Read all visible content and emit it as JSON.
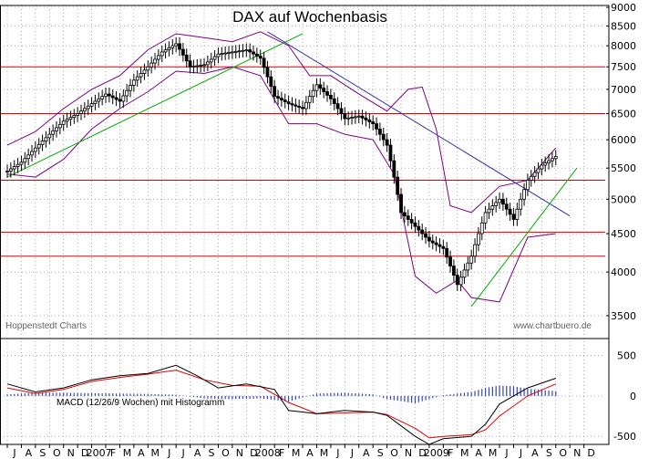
{
  "chart_data": {
    "type": "candlestick",
    "title": "DAX auf Wochenbasis",
    "source_left": "Hoppenstedt Charts",
    "source_right": "www.chartbuero.de",
    "price_axis": {
      "scale": "log",
      "ticks": [
        3500,
        4000,
        4500,
        5000,
        5500,
        6000,
        6500,
        7000,
        7500,
        8000,
        8500,
        9000
      ],
      "range": [
        3300,
        9000
      ]
    },
    "time_axis": {
      "ticks": [
        "J",
        "A",
        "S",
        "O",
        "N",
        "D",
        "2007",
        "F",
        "M",
        "A",
        "M",
        "J",
        "J",
        "A",
        "S",
        "O",
        "N",
        "D",
        "2008",
        "F",
        "M",
        "A",
        "M",
        "J",
        "J",
        "A",
        "S",
        "O",
        "N",
        "D",
        "2009",
        "F",
        "M",
        "A",
        "M",
        "J",
        "J",
        "A",
        "S",
        "O",
        "N",
        "D"
      ],
      "start_index": 0,
      "end_index": 41
    },
    "horizontal_levels": [
      7500,
      6500,
      5300,
      4520,
      4200
    ],
    "price": [
      {
        "t": 0.0,
        "v": 5450
      },
      {
        "t": 1.0,
        "v": 5600
      },
      {
        "t": 2.0,
        "v": 5850
      },
      {
        "t": 3.0,
        "v": 6100
      },
      {
        "t": 4.0,
        "v": 6350
      },
      {
        "t": 5.0,
        "v": 6500
      },
      {
        "t": 6.0,
        "v": 6700
      },
      {
        "t": 7.0,
        "v": 6900
      },
      {
        "t": 8.0,
        "v": 6750
      },
      {
        "t": 9.0,
        "v": 7200
      },
      {
        "t": 10.0,
        "v": 7500
      },
      {
        "t": 11.0,
        "v": 7850
      },
      {
        "t": 12.0,
        "v": 8050
      },
      {
        "t": 13.0,
        "v": 7500
      },
      {
        "t": 14.0,
        "v": 7550
      },
      {
        "t": 15.0,
        "v": 7800
      },
      {
        "t": 16.0,
        "v": 7850
      },
      {
        "t": 17.0,
        "v": 7900
      },
      {
        "t": 18.0,
        "v": 7700
      },
      {
        "t": 19.0,
        "v": 6850
      },
      {
        "t": 20.0,
        "v": 6700
      },
      {
        "t": 21.0,
        "v": 6600
      },
      {
        "t": 22.0,
        "v": 7100
      },
      {
        "t": 23.0,
        "v": 6800
      },
      {
        "t": 24.0,
        "v": 6400
      },
      {
        "t": 25.0,
        "v": 6450
      },
      {
        "t": 26.0,
        "v": 6300
      },
      {
        "t": 27.0,
        "v": 5900
      },
      {
        "t": 28.0,
        "v": 4800
      },
      {
        "t": 29.0,
        "v": 4600
      },
      {
        "t": 30.0,
        "v": 4400
      },
      {
        "t": 31.0,
        "v": 4300
      },
      {
        "t": 32.0,
        "v": 3850
      },
      {
        "t": 33.0,
        "v": 4200
      },
      {
        "t": 34.0,
        "v": 4800
      },
      {
        "t": 35.0,
        "v": 5000
      },
      {
        "t": 36.0,
        "v": 4700
      },
      {
        "t": 37.0,
        "v": 5300
      },
      {
        "t": 38.0,
        "v": 5550
      },
      {
        "t": 39.0,
        "v": 5700
      }
    ],
    "upper_band": [
      {
        "t": 0.0,
        "v": 5900
      },
      {
        "t": 2.0,
        "v": 6150
      },
      {
        "t": 4.0,
        "v": 6600
      },
      {
        "t": 6.0,
        "v": 7000
      },
      {
        "t": 8.0,
        "v": 7300
      },
      {
        "t": 10.0,
        "v": 7900
      },
      {
        "t": 12.0,
        "v": 8300
      },
      {
        "t": 14.0,
        "v": 8200
      },
      {
        "t": 16.0,
        "v": 8100
      },
      {
        "t": 18.0,
        "v": 8350
      },
      {
        "t": 20.0,
        "v": 8000
      },
      {
        "t": 21.5,
        "v": 7300
      },
      {
        "t": 23.0,
        "v": 7300
      },
      {
        "t": 25.0,
        "v": 6900
      },
      {
        "t": 27.0,
        "v": 6550
      },
      {
        "t": 28.5,
        "v": 7000
      },
      {
        "t": 29.5,
        "v": 7050
      },
      {
        "t": 30.5,
        "v": 6200
      },
      {
        "t": 31.5,
        "v": 4900
      },
      {
        "t": 33.0,
        "v": 4800
      },
      {
        "t": 35.0,
        "v": 5200
      },
      {
        "t": 37.0,
        "v": 5300
      },
      {
        "t": 39.0,
        "v": 5850
      }
    ],
    "lower_band": [
      {
        "t": 0.0,
        "v": 5400
      },
      {
        "t": 2.0,
        "v": 5350
      },
      {
        "t": 4.0,
        "v": 5650
      },
      {
        "t": 6.0,
        "v": 6200
      },
      {
        "t": 8.0,
        "v": 6600
      },
      {
        "t": 10.0,
        "v": 6950
      },
      {
        "t": 12.0,
        "v": 7400
      },
      {
        "t": 14.0,
        "v": 7350
      },
      {
        "t": 16.0,
        "v": 7500
      },
      {
        "t": 18.0,
        "v": 7300
      },
      {
        "t": 20.0,
        "v": 6300
      },
      {
        "t": 22.0,
        "v": 6300
      },
      {
        "t": 24.0,
        "v": 6100
      },
      {
        "t": 26.0,
        "v": 6000
      },
      {
        "t": 27.5,
        "v": 5400
      },
      {
        "t": 29.0,
        "v": 3950
      },
      {
        "t": 30.5,
        "v": 3750
      },
      {
        "t": 32.0,
        "v": 3900
      },
      {
        "t": 33.0,
        "v": 3700
      },
      {
        "t": 35.0,
        "v": 3650
      },
      {
        "t": 37.0,
        "v": 4450
      },
      {
        "t": 39.0,
        "v": 4500
      }
    ],
    "trend_lines": [
      {
        "color": "#00aa00",
        "from": {
          "t": 0.0,
          "v": 5350
        },
        "to": {
          "t": 21.0,
          "v": 8300
        }
      },
      {
        "color": "#3333aa",
        "from": {
          "t": 18.5,
          "v": 8350
        },
        "to": {
          "t": 40.0,
          "v": 4750
        }
      },
      {
        "color": "#00aa00",
        "from": {
          "t": 33.0,
          "v": 3600
        },
        "to": {
          "t": 40.5,
          "v": 5500
        }
      }
    ],
    "macd": {
      "label": "MACD (12/26/9 Wochen) mit Histogramm",
      "ticks": [
        500,
        0,
        -500
      ],
      "range": [
        -600,
        700
      ],
      "macd_line": [
        {
          "t": 0.0,
          "v": 150
        },
        {
          "t": 2.0,
          "v": 50
        },
        {
          "t": 4.0,
          "v": 100
        },
        {
          "t": 6.0,
          "v": 200
        },
        {
          "t": 8.0,
          "v": 250
        },
        {
          "t": 10.0,
          "v": 280
        },
        {
          "t": 12.0,
          "v": 380
        },
        {
          "t": 13.5,
          "v": 250
        },
        {
          "t": 15.0,
          "v": 100
        },
        {
          "t": 17.0,
          "v": 150
        },
        {
          "t": 19.0,
          "v": 80
        },
        {
          "t": 20.0,
          "v": -180
        },
        {
          "t": 22.0,
          "v": -220
        },
        {
          "t": 24.0,
          "v": -180
        },
        {
          "t": 26.0,
          "v": -200
        },
        {
          "t": 27.0,
          "v": -240
        },
        {
          "t": 29.0,
          "v": -500
        },
        {
          "t": 30.0,
          "v": -600
        },
        {
          "t": 31.0,
          "v": -530
        },
        {
          "t": 33.0,
          "v": -500
        },
        {
          "t": 34.0,
          "v": -350
        },
        {
          "t": 35.0,
          "v": -100
        },
        {
          "t": 37.0,
          "v": 100
        },
        {
          "t": 39.0,
          "v": 220
        }
      ],
      "signal_line": [
        {
          "t": 0.0,
          "v": 100
        },
        {
          "t": 2.0,
          "v": 30
        },
        {
          "t": 4.0,
          "v": 80
        },
        {
          "t": 6.0,
          "v": 180
        },
        {
          "t": 8.0,
          "v": 230
        },
        {
          "t": 10.0,
          "v": 270
        },
        {
          "t": 12.0,
          "v": 320
        },
        {
          "t": 14.0,
          "v": 200
        },
        {
          "t": 16.0,
          "v": 130
        },
        {
          "t": 18.0,
          "v": 120
        },
        {
          "t": 20.0,
          "v": -80
        },
        {
          "t": 22.0,
          "v": -220
        },
        {
          "t": 24.0,
          "v": -210
        },
        {
          "t": 26.0,
          "v": -200
        },
        {
          "t": 27.0,
          "v": -230
        },
        {
          "t": 29.0,
          "v": -400
        },
        {
          "t": 30.0,
          "v": -520
        },
        {
          "t": 31.0,
          "v": -500
        },
        {
          "t": 33.0,
          "v": -480
        },
        {
          "t": 34.0,
          "v": -420
        },
        {
          "t": 35.0,
          "v": -250
        },
        {
          "t": 37.0,
          "v": 0
        },
        {
          "t": 39.0,
          "v": 150
        }
      ],
      "histogram": [
        {
          "t": 0.0,
          "v": 20
        },
        {
          "t": 2.0,
          "v": 40
        },
        {
          "t": 4.0,
          "v": 40
        },
        {
          "t": 6.0,
          "v": 35
        },
        {
          "t": 8.0,
          "v": 30
        },
        {
          "t": 10.0,
          "v": 25
        },
        {
          "t": 12.0,
          "v": 15
        },
        {
          "t": 14.0,
          "v": -30
        },
        {
          "t": 16.0,
          "v": -40
        },
        {
          "t": 18.0,
          "v": -30
        },
        {
          "t": 20.0,
          "v": -70
        },
        {
          "t": 22.0,
          "v": 30
        },
        {
          "t": 24.0,
          "v": 40
        },
        {
          "t": 26.0,
          "v": 20
        },
        {
          "t": 27.0,
          "v": -40
        },
        {
          "t": 29.0,
          "v": -90
        },
        {
          "t": 30.0,
          "v": -40
        },
        {
          "t": 31.0,
          "v": 10
        },
        {
          "t": 33.0,
          "v": 50
        },
        {
          "t": 34.0,
          "v": 100
        },
        {
          "t": 35.0,
          "v": 130
        },
        {
          "t": 36.0,
          "v": 120
        },
        {
          "t": 37.0,
          "v": 90
        },
        {
          "t": 39.0,
          "v": 60
        }
      ]
    }
  },
  "colors": {
    "price": "#000000",
    "band": "#7a0080",
    "level": "#e00000",
    "grid": "#808080",
    "macd": "#000000",
    "signal": "#e00000",
    "histogram": "#3344bb"
  }
}
